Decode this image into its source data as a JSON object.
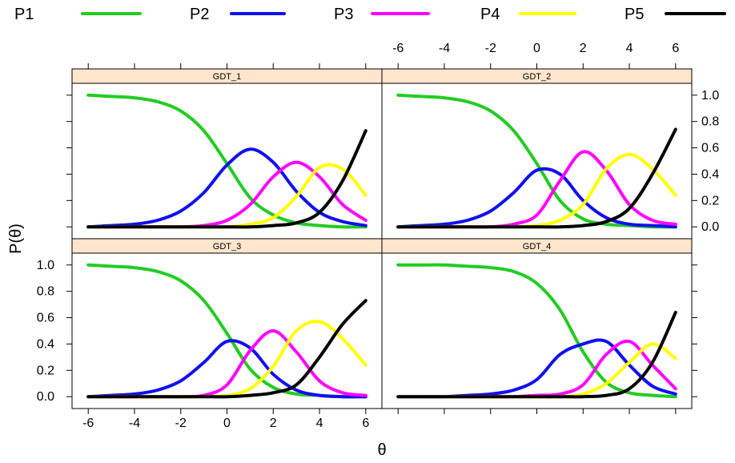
{
  "chart_data": {
    "type": "line",
    "xlabel": "θ",
    "ylabel": "P(θ)",
    "xlim": [
      -6.7,
      6.7
    ],
    "ylim": [
      -0.09,
      1.09
    ],
    "x_ticks": [
      -6,
      -4,
      -2,
      0,
      2,
      4,
      6
    ],
    "y_ticks": [
      0.0,
      0.2,
      0.4,
      0.6,
      0.8,
      1.0
    ],
    "x_tick_labels": [
      "-6",
      "-4",
      "-2",
      "0",
      "2",
      "4",
      "6"
    ],
    "y_tick_labels": [
      "0.0",
      "0.2",
      "0.4",
      "0.6",
      "0.8",
      "1.0"
    ],
    "grid": false,
    "legend_position": "top",
    "legend": [
      {
        "name": "P1",
        "color": "#22cc22"
      },
      {
        "name": "P2",
        "color": "#1010ee"
      },
      {
        "name": "P3",
        "color": "#ff00ff"
      },
      {
        "name": "P4",
        "color": "#ffff00"
      },
      {
        "name": "P5",
        "color": "#000000"
      }
    ],
    "panels": [
      {
        "title": "GDT_1",
        "series": [
          {
            "name": "P1",
            "x": [
              -6,
              -5,
              -4,
              -3,
              -2,
              -1,
              0,
              1,
              2,
              3,
              4,
              5,
              6
            ],
            "y": [
              1.0,
              0.99,
              0.98,
              0.95,
              0.88,
              0.73,
              0.48,
              0.22,
              0.09,
              0.03,
              0.01,
              0.0,
              0.0
            ]
          },
          {
            "name": "P2",
            "x": [
              -6,
              -5,
              -4,
              -3,
              -2,
              -1,
              0,
              1,
              2,
              3,
              4,
              5,
              6
            ],
            "y": [
              0.0,
              0.01,
              0.02,
              0.05,
              0.12,
              0.26,
              0.47,
              0.59,
              0.49,
              0.27,
              0.11,
              0.04,
              0.01
            ]
          },
          {
            "name": "P3",
            "x": [
              -6,
              -5,
              -4,
              -3,
              -2,
              -1,
              0,
              1,
              2,
              3,
              4,
              5,
              6
            ],
            "y": [
              0.0,
              0.0,
              0.0,
              0.0,
              0.0,
              0.01,
              0.05,
              0.17,
              0.38,
              0.49,
              0.38,
              0.17,
              0.05
            ]
          },
          {
            "name": "P4",
            "x": [
              -6,
              -5,
              -4,
              -3,
              -2,
              -1,
              0,
              1,
              2,
              3,
              4,
              5,
              6
            ],
            "y": [
              0.0,
              0.0,
              0.0,
              0.0,
              0.0,
              0.0,
              0.0,
              0.02,
              0.07,
              0.23,
              0.45,
              0.44,
              0.24
            ]
          },
          {
            "name": "P5",
            "x": [
              -6,
              -5,
              -4,
              -3,
              -2,
              -1,
              0,
              1,
              2,
              3,
              4,
              5,
              6
            ],
            "y": [
              0.0,
              0.0,
              0.0,
              0.0,
              0.0,
              0.0,
              0.0,
              0.0,
              0.01,
              0.03,
              0.11,
              0.35,
              0.73
            ]
          }
        ]
      },
      {
        "title": "GDT_2",
        "series": [
          {
            "name": "P1",
            "x": [
              -6,
              -5,
              -4,
              -3,
              -2,
              -1,
              0,
              1,
              2,
              3,
              4,
              5,
              6
            ],
            "y": [
              1.0,
              0.99,
              0.98,
              0.95,
              0.88,
              0.73,
              0.48,
              0.2,
              0.06,
              0.02,
              0.01,
              0.0,
              0.0
            ]
          },
          {
            "name": "P2",
            "x": [
              -6,
              -5,
              -4,
              -3,
              -2,
              -1,
              0,
              1,
              2,
              3,
              4,
              5,
              6
            ],
            "y": [
              0.0,
              0.01,
              0.02,
              0.05,
              0.12,
              0.26,
              0.43,
              0.4,
              0.2,
              0.07,
              0.02,
              0.01,
              0.0
            ]
          },
          {
            "name": "P3",
            "x": [
              -6,
              -5,
              -4,
              -3,
              -2,
              -1,
              0,
              1,
              2,
              3,
              4,
              5,
              6
            ],
            "y": [
              0.0,
              0.0,
              0.0,
              0.0,
              0.0,
              0.02,
              0.09,
              0.35,
              0.57,
              0.43,
              0.17,
              0.05,
              0.02
            ]
          },
          {
            "name": "P4",
            "x": [
              -6,
              -5,
              -4,
              -3,
              -2,
              -1,
              0,
              1,
              2,
              3,
              4,
              5,
              6
            ],
            "y": [
              0.0,
              0.0,
              0.0,
              0.0,
              0.0,
              0.0,
              0.01,
              0.05,
              0.17,
              0.44,
              0.55,
              0.44,
              0.24
            ]
          },
          {
            "name": "P5",
            "x": [
              -6,
              -5,
              -4,
              -3,
              -2,
              -1,
              0,
              1,
              2,
              3,
              4,
              5,
              6
            ],
            "y": [
              0.0,
              0.0,
              0.0,
              0.0,
              0.0,
              0.0,
              0.0,
              0.0,
              0.01,
              0.04,
              0.14,
              0.4,
              0.74
            ]
          }
        ]
      },
      {
        "title": "GDT_3",
        "series": [
          {
            "name": "P1",
            "x": [
              -6,
              -5,
              -4,
              -3,
              -2,
              -1,
              0,
              1,
              2,
              3,
              4,
              5,
              6
            ],
            "y": [
              1.0,
              0.99,
              0.98,
              0.95,
              0.88,
              0.73,
              0.48,
              0.21,
              0.07,
              0.02,
              0.01,
              0.0,
              0.0
            ]
          },
          {
            "name": "P2",
            "x": [
              -6,
              -5,
              -4,
              -3,
              -2,
              -1,
              0,
              1,
              2,
              3,
              4,
              5,
              6
            ],
            "y": [
              0.0,
              0.01,
              0.02,
              0.05,
              0.12,
              0.26,
              0.42,
              0.37,
              0.17,
              0.05,
              0.01,
              0.0,
              0.0
            ]
          },
          {
            "name": "P3",
            "x": [
              -6,
              -5,
              -4,
              -3,
              -2,
              -1,
              0,
              1,
              2,
              3,
              4,
              5,
              6
            ],
            "y": [
              0.0,
              0.0,
              0.0,
              0.0,
              0.0,
              0.01,
              0.09,
              0.35,
              0.5,
              0.34,
              0.12,
              0.03,
              0.01
            ]
          },
          {
            "name": "P4",
            "x": [
              -6,
              -5,
              -4,
              -3,
              -2,
              -1,
              0,
              1,
              2,
              3,
              4,
              5,
              6
            ],
            "y": [
              0.0,
              0.0,
              0.0,
              0.0,
              0.0,
              0.0,
              0.01,
              0.06,
              0.23,
              0.5,
              0.57,
              0.44,
              0.24
            ]
          },
          {
            "name": "P5",
            "x": [
              -6,
              -5,
              -4,
              -3,
              -2,
              -1,
              0,
              1,
              2,
              3,
              4,
              5,
              6
            ],
            "y": [
              0.0,
              0.0,
              0.0,
              0.0,
              0.0,
              0.0,
              0.0,
              0.01,
              0.03,
              0.09,
              0.3,
              0.55,
              0.73
            ]
          }
        ]
      },
      {
        "title": "GDT_4",
        "series": [
          {
            "name": "P1",
            "x": [
              -6,
              -5,
              -4,
              -3,
              -2,
              -1,
              0,
              1,
              2,
              3,
              4,
              5,
              6
            ],
            "y": [
              1.0,
              1.0,
              1.0,
              0.99,
              0.98,
              0.95,
              0.86,
              0.66,
              0.34,
              0.11,
              0.03,
              0.01,
              0.0
            ]
          },
          {
            "name": "P2",
            "x": [
              -6,
              -5,
              -4,
              -3,
              -2,
              -1,
              0,
              1,
              2,
              3,
              4,
              5,
              6
            ],
            "y": [
              0.0,
              0.0,
              0.0,
              0.01,
              0.02,
              0.05,
              0.13,
              0.32,
              0.4,
              0.42,
              0.24,
              0.08,
              0.02
            ]
          },
          {
            "name": "P3",
            "x": [
              -6,
              -5,
              -4,
              -3,
              -2,
              -1,
              0,
              1,
              2,
              3,
              4,
              5,
              6
            ],
            "y": [
              0.0,
              0.0,
              0.0,
              0.0,
              0.0,
              0.0,
              0.01,
              0.02,
              0.09,
              0.32,
              0.42,
              0.24,
              0.06
            ]
          },
          {
            "name": "P4",
            "x": [
              -6,
              -5,
              -4,
              -3,
              -2,
              -1,
              0,
              1,
              2,
              3,
              4,
              5,
              6
            ],
            "y": [
              0.0,
              0.0,
              0.0,
              0.0,
              0.0,
              0.0,
              0.0,
              0.0,
              0.02,
              0.1,
              0.26,
              0.4,
              0.29
            ]
          },
          {
            "name": "P5",
            "x": [
              -6,
              -5,
              -4,
              -3,
              -2,
              -1,
              0,
              1,
              2,
              3,
              4,
              5,
              6
            ],
            "y": [
              0.0,
              0.0,
              0.0,
              0.0,
              0.0,
              0.0,
              0.0,
              0.0,
              0.0,
              0.01,
              0.06,
              0.26,
              0.64
            ]
          }
        ]
      }
    ]
  }
}
